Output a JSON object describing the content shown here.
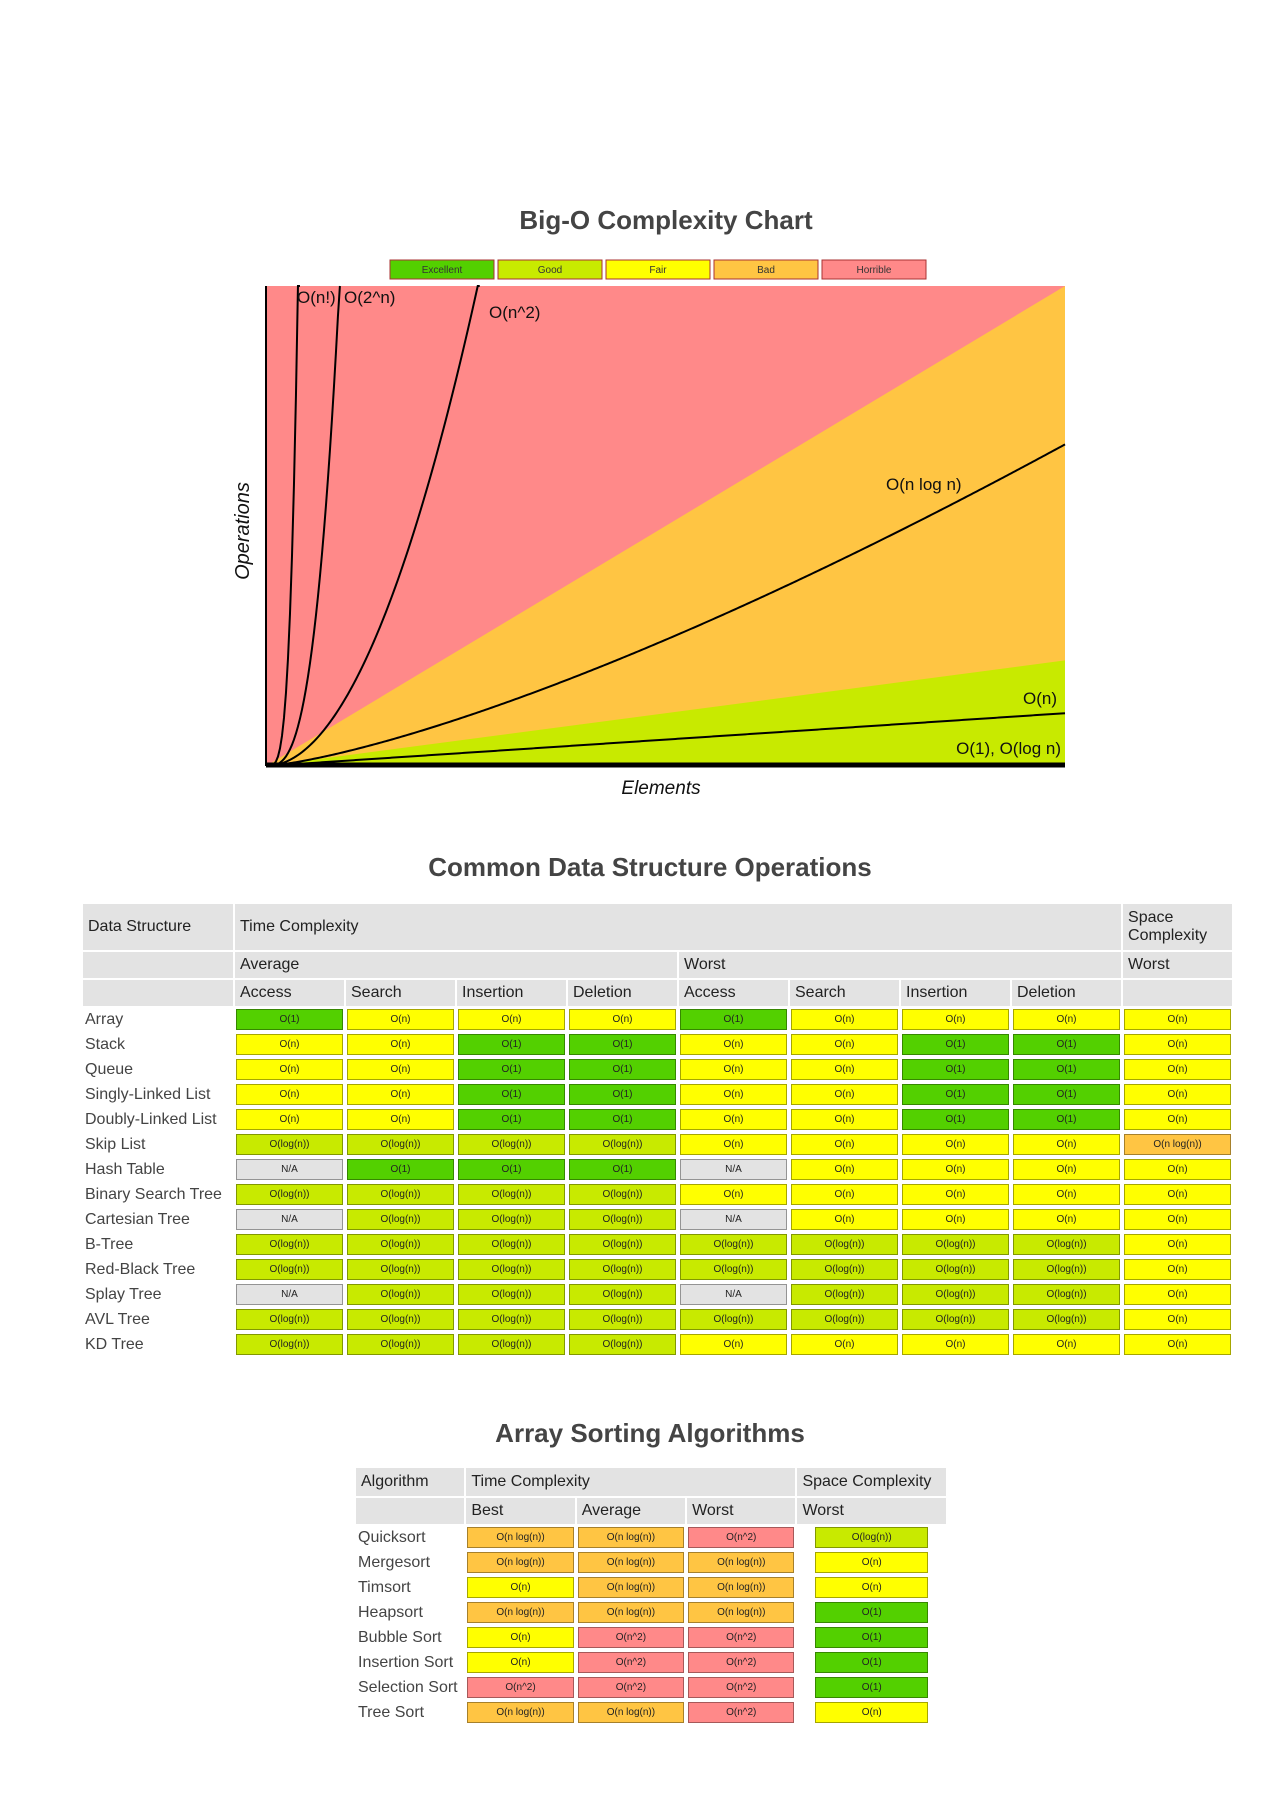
{
  "chart": {
    "title": "Big-O Complexity Chart",
    "legend": [
      {
        "label": "Excellent",
        "color": "#53d000"
      },
      {
        "label": "Good",
        "color": "#c8ea00"
      },
      {
        "label": "Fair",
        "color": "#ffff00"
      },
      {
        "label": "Bad",
        "color": "#ffc543"
      },
      {
        "label": "Horrible",
        "color": "#ff8989"
      }
    ],
    "curves": [
      "O(n!)",
      "O(2^n)",
      "O(n^2)",
      "O(n log n)",
      "O(n)",
      "O(1), O(log n)"
    ],
    "x_label": "Elements",
    "y_label": "Operations"
  },
  "data_structures": {
    "title": "Common Data Structure Operations",
    "header": {
      "structure": "Data Structure",
      "time": "Time Complexity",
      "space": "Space Complexity",
      "average": "Average",
      "worst": "Worst",
      "space_worst": "Worst",
      "operations": [
        "Access",
        "Search",
        "Insertion",
        "Deletion",
        "Access",
        "Search",
        "Insertion",
        "Deletion"
      ]
    },
    "rows": [
      {
        "name": "Array",
        "cells": [
          {
            "text": "O(1)",
            "color": "#53d000"
          },
          {
            "text": "O(n)",
            "color": "#ffff00"
          },
          {
            "text": "O(n)",
            "color": "#ffff00"
          },
          {
            "text": "O(n)",
            "color": "#ffff00"
          },
          {
            "text": "O(1)",
            "color": "#53d000"
          },
          {
            "text": "O(n)",
            "color": "#ffff00"
          },
          {
            "text": "O(n)",
            "color": "#ffff00"
          },
          {
            "text": "O(n)",
            "color": "#ffff00"
          },
          {
            "text": "O(n)",
            "color": "#ffff00"
          }
        ]
      },
      {
        "name": "Stack",
        "cells": [
          {
            "text": "O(n)",
            "color": "#ffff00"
          },
          {
            "text": "O(n)",
            "color": "#ffff00"
          },
          {
            "text": "O(1)",
            "color": "#53d000"
          },
          {
            "text": "O(1)",
            "color": "#53d000"
          },
          {
            "text": "O(n)",
            "color": "#ffff00"
          },
          {
            "text": "O(n)",
            "color": "#ffff00"
          },
          {
            "text": "O(1)",
            "color": "#53d000"
          },
          {
            "text": "O(1)",
            "color": "#53d000"
          },
          {
            "text": "O(n)",
            "color": "#ffff00"
          }
        ]
      },
      {
        "name": "Queue",
        "cells": [
          {
            "text": "O(n)",
            "color": "#ffff00"
          },
          {
            "text": "O(n)",
            "color": "#ffff00"
          },
          {
            "text": "O(1)",
            "color": "#53d000"
          },
          {
            "text": "O(1)",
            "color": "#53d000"
          },
          {
            "text": "O(n)",
            "color": "#ffff00"
          },
          {
            "text": "O(n)",
            "color": "#ffff00"
          },
          {
            "text": "O(1)",
            "color": "#53d000"
          },
          {
            "text": "O(1)",
            "color": "#53d000"
          },
          {
            "text": "O(n)",
            "color": "#ffff00"
          }
        ]
      },
      {
        "name": "Singly-Linked List",
        "cells": [
          {
            "text": "O(n)",
            "color": "#ffff00"
          },
          {
            "text": "O(n)",
            "color": "#ffff00"
          },
          {
            "text": "O(1)",
            "color": "#53d000"
          },
          {
            "text": "O(1)",
            "color": "#53d000"
          },
          {
            "text": "O(n)",
            "color": "#ffff00"
          },
          {
            "text": "O(n)",
            "color": "#ffff00"
          },
          {
            "text": "O(1)",
            "color": "#53d000"
          },
          {
            "text": "O(1)",
            "color": "#53d000"
          },
          {
            "text": "O(n)",
            "color": "#ffff00"
          }
        ]
      },
      {
        "name": "Doubly-Linked List",
        "cells": [
          {
            "text": "O(n)",
            "color": "#ffff00"
          },
          {
            "text": "O(n)",
            "color": "#ffff00"
          },
          {
            "text": "O(1)",
            "color": "#53d000"
          },
          {
            "text": "O(1)",
            "color": "#53d000"
          },
          {
            "text": "O(n)",
            "color": "#ffff00"
          },
          {
            "text": "O(n)",
            "color": "#ffff00"
          },
          {
            "text": "O(1)",
            "color": "#53d000"
          },
          {
            "text": "O(1)",
            "color": "#53d000"
          },
          {
            "text": "O(n)",
            "color": "#ffff00"
          }
        ]
      },
      {
        "name": "Skip List",
        "cells": [
          {
            "text": "O(log(n))",
            "color": "#c8ea00"
          },
          {
            "text": "O(log(n))",
            "color": "#c8ea00"
          },
          {
            "text": "O(log(n))",
            "color": "#c8ea00"
          },
          {
            "text": "O(log(n))",
            "color": "#c8ea00"
          },
          {
            "text": "O(n)",
            "color": "#ffff00"
          },
          {
            "text": "O(n)",
            "color": "#ffff00"
          },
          {
            "text": "O(n)",
            "color": "#ffff00"
          },
          {
            "text": "O(n)",
            "color": "#ffff00"
          },
          {
            "text": "O(n log(n))",
            "color": "#ffc543"
          }
        ]
      },
      {
        "name": "Hash Table",
        "cells": [
          {
            "text": "N/A",
            "color": "#e3e3e3"
          },
          {
            "text": "O(1)",
            "color": "#53d000"
          },
          {
            "text": "O(1)",
            "color": "#53d000"
          },
          {
            "text": "O(1)",
            "color": "#53d000"
          },
          {
            "text": "N/A",
            "color": "#e3e3e3"
          },
          {
            "text": "O(n)",
            "color": "#ffff00"
          },
          {
            "text": "O(n)",
            "color": "#ffff00"
          },
          {
            "text": "O(n)",
            "color": "#ffff00"
          },
          {
            "text": "O(n)",
            "color": "#ffff00"
          }
        ]
      },
      {
        "name": "Binary Search Tree",
        "cells": [
          {
            "text": "O(log(n))",
            "color": "#c8ea00"
          },
          {
            "text": "O(log(n))",
            "color": "#c8ea00"
          },
          {
            "text": "O(log(n))",
            "color": "#c8ea00"
          },
          {
            "text": "O(log(n))",
            "color": "#c8ea00"
          },
          {
            "text": "O(n)",
            "color": "#ffff00"
          },
          {
            "text": "O(n)",
            "color": "#ffff00"
          },
          {
            "text": "O(n)",
            "color": "#ffff00"
          },
          {
            "text": "O(n)",
            "color": "#ffff00"
          },
          {
            "text": "O(n)",
            "color": "#ffff00"
          }
        ]
      },
      {
        "name": "Cartesian Tree",
        "cells": [
          {
            "text": "N/A",
            "color": "#e3e3e3"
          },
          {
            "text": "O(log(n))",
            "color": "#c8ea00"
          },
          {
            "text": "O(log(n))",
            "color": "#c8ea00"
          },
          {
            "text": "O(log(n))",
            "color": "#c8ea00"
          },
          {
            "text": "N/A",
            "color": "#e3e3e3"
          },
          {
            "text": "O(n)",
            "color": "#ffff00"
          },
          {
            "text": "O(n)",
            "color": "#ffff00"
          },
          {
            "text": "O(n)",
            "color": "#ffff00"
          },
          {
            "text": "O(n)",
            "color": "#ffff00"
          }
        ]
      },
      {
        "name": "B-Tree",
        "cells": [
          {
            "text": "O(log(n))",
            "color": "#c8ea00"
          },
          {
            "text": "O(log(n))",
            "color": "#c8ea00"
          },
          {
            "text": "O(log(n))",
            "color": "#c8ea00"
          },
          {
            "text": "O(log(n))",
            "color": "#c8ea00"
          },
          {
            "text": "O(log(n))",
            "color": "#c8ea00"
          },
          {
            "text": "O(log(n))",
            "color": "#c8ea00"
          },
          {
            "text": "O(log(n))",
            "color": "#c8ea00"
          },
          {
            "text": "O(log(n))",
            "color": "#c8ea00"
          },
          {
            "text": "O(n)",
            "color": "#ffff00"
          }
        ]
      },
      {
        "name": "Red-Black Tree",
        "cells": [
          {
            "text": "O(log(n))",
            "color": "#c8ea00"
          },
          {
            "text": "O(log(n))",
            "color": "#c8ea00"
          },
          {
            "text": "O(log(n))",
            "color": "#c8ea00"
          },
          {
            "text": "O(log(n))",
            "color": "#c8ea00"
          },
          {
            "text": "O(log(n))",
            "color": "#c8ea00"
          },
          {
            "text": "O(log(n))",
            "color": "#c8ea00"
          },
          {
            "text": "O(log(n))",
            "color": "#c8ea00"
          },
          {
            "text": "O(log(n))",
            "color": "#c8ea00"
          },
          {
            "text": "O(n)",
            "color": "#ffff00"
          }
        ]
      },
      {
        "name": "Splay Tree",
        "cells": [
          {
            "text": "N/A",
            "color": "#e3e3e3"
          },
          {
            "text": "O(log(n))",
            "color": "#c8ea00"
          },
          {
            "text": "O(log(n))",
            "color": "#c8ea00"
          },
          {
            "text": "O(log(n))",
            "color": "#c8ea00"
          },
          {
            "text": "N/A",
            "color": "#e3e3e3"
          },
          {
            "text": "O(log(n))",
            "color": "#c8ea00"
          },
          {
            "text": "O(log(n))",
            "color": "#c8ea00"
          },
          {
            "text": "O(log(n))",
            "color": "#c8ea00"
          },
          {
            "text": "O(n)",
            "color": "#ffff00"
          }
        ]
      },
      {
        "name": "AVL Tree",
        "cells": [
          {
            "text": "O(log(n))",
            "color": "#c8ea00"
          },
          {
            "text": "O(log(n))",
            "color": "#c8ea00"
          },
          {
            "text": "O(log(n))",
            "color": "#c8ea00"
          },
          {
            "text": "O(log(n))",
            "color": "#c8ea00"
          },
          {
            "text": "O(log(n))",
            "color": "#c8ea00"
          },
          {
            "text": "O(log(n))",
            "color": "#c8ea00"
          },
          {
            "text": "O(log(n))",
            "color": "#c8ea00"
          },
          {
            "text": "O(log(n))",
            "color": "#c8ea00"
          },
          {
            "text": "O(n)",
            "color": "#ffff00"
          }
        ]
      },
      {
        "name": "KD Tree",
        "cells": [
          {
            "text": "O(log(n))",
            "color": "#c8ea00"
          },
          {
            "text": "O(log(n))",
            "color": "#c8ea00"
          },
          {
            "text": "O(log(n))",
            "color": "#c8ea00"
          },
          {
            "text": "O(log(n))",
            "color": "#c8ea00"
          },
          {
            "text": "O(n)",
            "color": "#ffff00"
          },
          {
            "text": "O(n)",
            "color": "#ffff00"
          },
          {
            "text": "O(n)",
            "color": "#ffff00"
          },
          {
            "text": "O(n)",
            "color": "#ffff00"
          },
          {
            "text": "O(n)",
            "color": "#ffff00"
          }
        ]
      }
    ]
  },
  "sorting": {
    "title": "Array Sorting Algorithms",
    "header": {
      "algorithm": "Algorithm",
      "time": "Time Complexity",
      "space": "Space Complexity",
      "best": "Best",
      "average": "Average",
      "worst": "Worst",
      "space_worst": "Worst"
    },
    "rows": [
      {
        "name": "Quicksort",
        "cells": [
          {
            "text": "O(n log(n))",
            "color": "#ffc543"
          },
          {
            "text": "O(n log(n))",
            "color": "#ffc543"
          },
          {
            "text": "O(n^2)",
            "color": "#ff8989"
          },
          {
            "text": "O(log(n))",
            "color": "#c8ea00"
          }
        ]
      },
      {
        "name": "Mergesort",
        "cells": [
          {
            "text": "O(n log(n))",
            "color": "#ffc543"
          },
          {
            "text": "O(n log(n))",
            "color": "#ffc543"
          },
          {
            "text": "O(n log(n))",
            "color": "#ffc543"
          },
          {
            "text": "O(n)",
            "color": "#ffff00"
          }
        ]
      },
      {
        "name": "Timsort",
        "cells": [
          {
            "text": "O(n)",
            "color": "#ffff00"
          },
          {
            "text": "O(n log(n))",
            "color": "#ffc543"
          },
          {
            "text": "O(n log(n))",
            "color": "#ffc543"
          },
          {
            "text": "O(n)",
            "color": "#ffff00"
          }
        ]
      },
      {
        "name": "Heapsort",
        "cells": [
          {
            "text": "O(n log(n))",
            "color": "#ffc543"
          },
          {
            "text": "O(n log(n))",
            "color": "#ffc543"
          },
          {
            "text": "O(n log(n))",
            "color": "#ffc543"
          },
          {
            "text": "O(1)",
            "color": "#53d000"
          }
        ]
      },
      {
        "name": "Bubble Sort",
        "cells": [
          {
            "text": "O(n)",
            "color": "#ffff00"
          },
          {
            "text": "O(n^2)",
            "color": "#ff8989"
          },
          {
            "text": "O(n^2)",
            "color": "#ff8989"
          },
          {
            "text": "O(1)",
            "color": "#53d000"
          }
        ]
      },
      {
        "name": "Insertion Sort",
        "cells": [
          {
            "text": "O(n)",
            "color": "#ffff00"
          },
          {
            "text": "O(n^2)",
            "color": "#ff8989"
          },
          {
            "text": "O(n^2)",
            "color": "#ff8989"
          },
          {
            "text": "O(1)",
            "color": "#53d000"
          }
        ]
      },
      {
        "name": "Selection Sort",
        "cells": [
          {
            "text": "O(n^2)",
            "color": "#ff8989"
          },
          {
            "text": "O(n^2)",
            "color": "#ff8989"
          },
          {
            "text": "O(n^2)",
            "color": "#ff8989"
          },
          {
            "text": "O(1)",
            "color": "#53d000"
          }
        ]
      },
      {
        "name": "Tree Sort",
        "cells": [
          {
            "text": "O(n log(n))",
            "color": "#ffc543"
          },
          {
            "text": "O(n log(n))",
            "color": "#ffc543"
          },
          {
            "text": "O(n^2)",
            "color": "#ff8989"
          },
          {
            "text": "O(n)",
            "color": "#ffff00"
          }
        ]
      }
    ]
  }
}
